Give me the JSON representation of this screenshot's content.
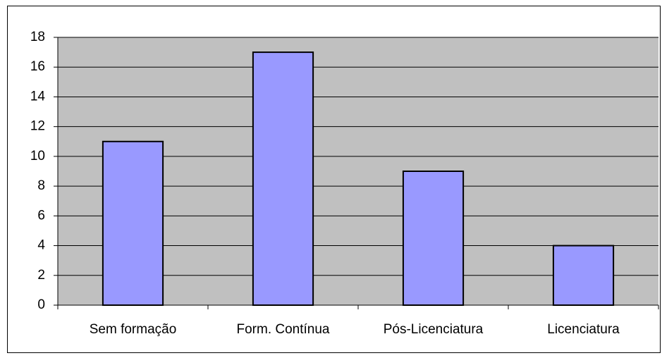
{
  "chart_data": {
    "type": "bar",
    "categories": [
      "Sem formação",
      "Form. Contínua",
      "Pós-Licenciatura",
      "Licenciatura"
    ],
    "values": [
      11,
      17,
      9,
      4
    ],
    "color": "#9999ff",
    "ylim": [
      0,
      18
    ],
    "yticks": [
      0,
      2,
      4,
      6,
      8,
      10,
      12,
      14,
      16,
      18
    ],
    "grid": true
  }
}
